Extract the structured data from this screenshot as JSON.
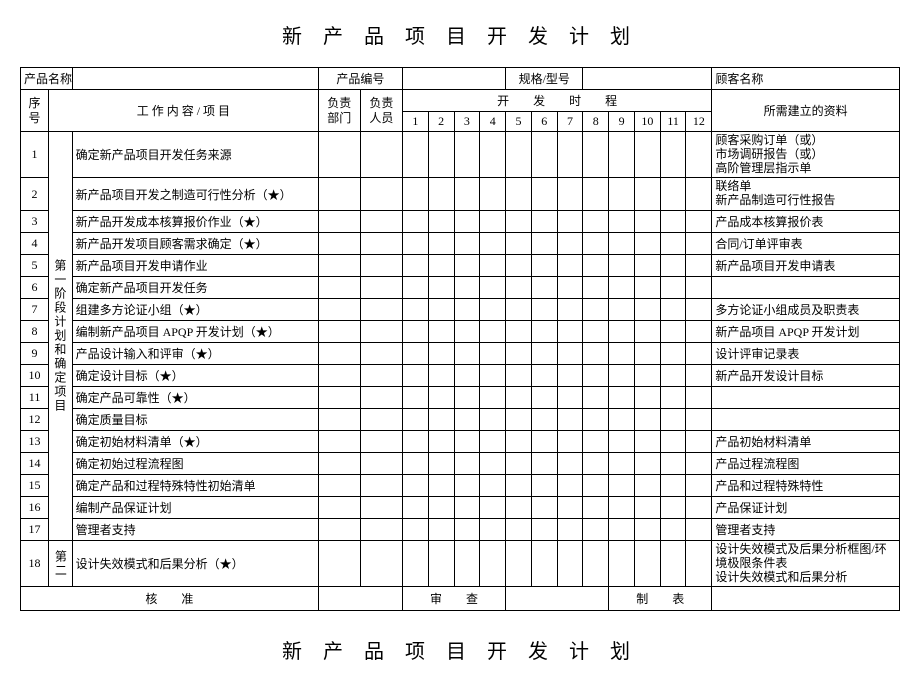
{
  "title": "新 产 品 项 目 开 发 计 划",
  "headerRow": {
    "productNameLabel": "产品名称",
    "productCodeLabel": "产品编号",
    "specLabel": "规格/型号",
    "customerLabel": "顾客名称"
  },
  "colHeaders": {
    "seq": "序号",
    "workContent": "工 作 内 容 / 项 目",
    "dept": "负责部门",
    "person": "负责人员",
    "schedule": "开　　发　　时　　程",
    "docs": "所需建立的资料",
    "months": [
      "1",
      "2",
      "3",
      "4",
      "5",
      "6",
      "7",
      "8",
      "9",
      "10",
      "11",
      "12"
    ]
  },
  "phase1Label": "第一阶段计划和确定项目",
  "phase2Label": "第二",
  "rows": [
    {
      "n": "1",
      "task": "确定新产品项目开发任务来源",
      "doc": "顾客采购订单（或）\n市场调研报告（或）\n高阶管理层指示单"
    },
    {
      "n": "2",
      "task": "新产品项目开发之制造可行性分析（★）",
      "doc": "联络单\n新产品制造可行性报告"
    },
    {
      "n": "3",
      "task": "新产品开发成本核算报价作业（★）",
      "doc": "产品成本核算报价表"
    },
    {
      "n": "4",
      "task": "新产品开发项目顾客需求确定（★）",
      "doc": "合同/订单评审表"
    },
    {
      "n": "5",
      "task": "新产品项目开发申请作业",
      "doc": "新产品项目开发申请表"
    },
    {
      "n": "6",
      "task": "确定新产品项目开发任务",
      "doc": ""
    },
    {
      "n": "7",
      "task": "组建多方论证小组（★）",
      "doc": "多方论证小组成员及职责表"
    },
    {
      "n": "8",
      "task": "编制新产品项目 APQP 开发计划（★）",
      "doc": "新产品项目 APQP 开发计划"
    },
    {
      "n": "9",
      "task": "产品设计输入和评审（★）",
      "doc": "设计评审记录表"
    },
    {
      "n": "10",
      "task": "确定设计目标（★）",
      "doc": "新产品开发设计目标"
    },
    {
      "n": "11",
      "task": "确定产品可靠性（★）",
      "doc": ""
    },
    {
      "n": "12",
      "task": "确定质量目标",
      "doc": ""
    },
    {
      "n": "13",
      "task": "确定初始材料清单（★）",
      "doc": "产品初始材料清单"
    },
    {
      "n": "14",
      "task": "确定初始过程流程图",
      "doc": "产品过程流程图"
    },
    {
      "n": "15",
      "task": "确定产品和过程特殊特性初始清单",
      "doc": "产品和过程特殊特性"
    },
    {
      "n": "16",
      "task": "编制产品保证计划",
      "doc": "产品保证计划"
    },
    {
      "n": "17",
      "task": "管理者支持",
      "doc": "管理者支持"
    },
    {
      "n": "18",
      "task": "设计失效模式和后果分析（★）",
      "doc": "设计失效模式及后果分析框图/环境极限条件表\n设计失效模式和后果分析"
    }
  ],
  "footer": {
    "approve": "核　　准",
    "review": "审　　查",
    "make": "制　　表"
  },
  "footerTitle": "新 产 品 项 目 开 发 计 划",
  "layout": {
    "colWidths": {
      "seq": 24,
      "phase": 20,
      "task": 210,
      "dept": 36,
      "person": 36,
      "month": 22,
      "docs": 160
    }
  }
}
